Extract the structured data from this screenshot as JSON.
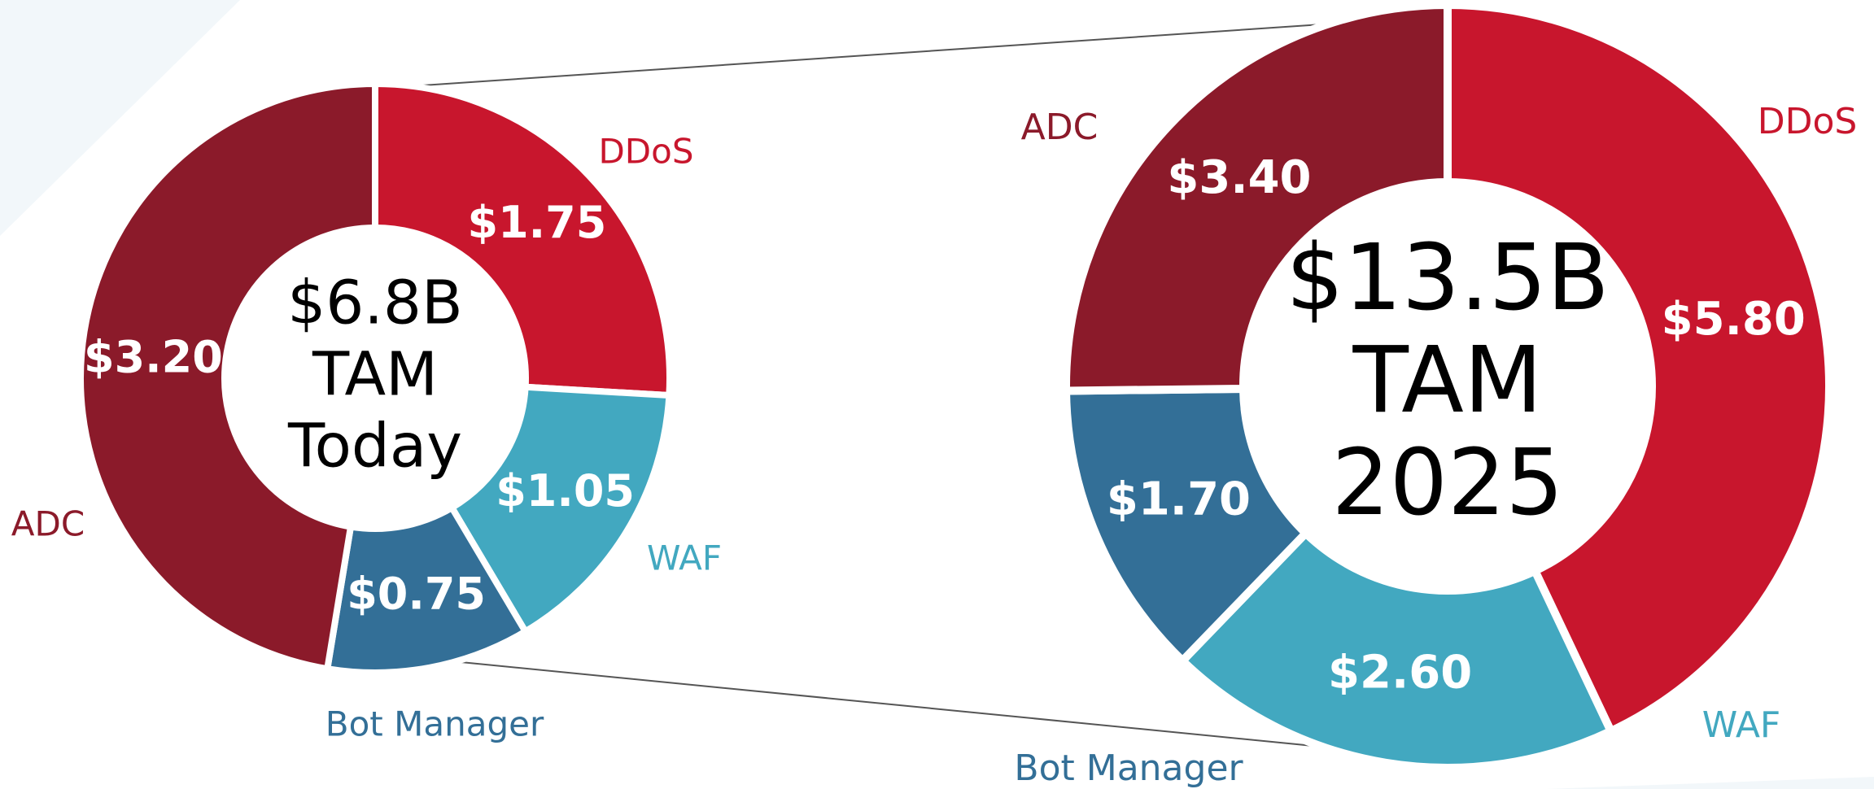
{
  "chart_data": [
    {
      "type": "pie",
      "categories": [
        "DDoS",
        "WAF",
        "Bot Manager",
        "ADC"
      ],
      "values": [
        1.75,
        1.05,
        0.75,
        3.2
      ],
      "value_labels": [
        "$1.75",
        "$1.05",
        "$0.75",
        "$3.20"
      ],
      "colors": [
        "#c8162d",
        "#42a8c0",
        "#336f97",
        "#8b1a2a"
      ],
      "center_text": [
        "$6.8B",
        "TAM",
        "Today"
      ]
    },
    {
      "type": "pie",
      "categories": [
        "DDoS",
        "WAF",
        "Bot Manager",
        "ADC"
      ],
      "values": [
        5.8,
        2.6,
        1.7,
        3.4
      ],
      "value_labels": [
        "$5.80",
        "$2.60",
        "$1.70",
        "$3.40"
      ],
      "colors": [
        "#c8162d",
        "#42a8c0",
        "#336f97",
        "#8b1a2a"
      ],
      "center_text": [
        "$13.5B",
        "TAM",
        "2025"
      ]
    }
  ]
}
